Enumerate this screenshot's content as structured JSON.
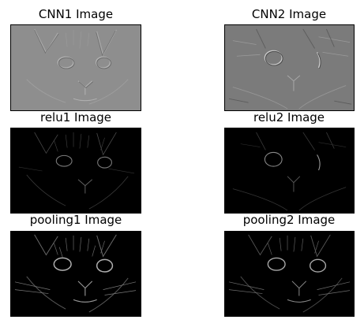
{
  "figure": {
    "panels": [
      {
        "id": "cnn1",
        "title": "CNN1 Image",
        "style": "emboss",
        "tone": "#8e8e8e"
      },
      {
        "id": "cnn2",
        "title": "CNN2 Image",
        "style": "emboss",
        "tone": "#7a7a7a"
      },
      {
        "id": "relu1",
        "title": "relu1 Image",
        "style": "dark-edges",
        "tone": "#000000"
      },
      {
        "id": "relu2",
        "title": "relu2 Image",
        "style": "dark-edges",
        "tone": "#000000"
      },
      {
        "id": "pooling1",
        "title": "pooling1 Image",
        "style": "pooled-edges",
        "tone": "#000000"
      },
      {
        "id": "pooling2",
        "title": "pooling2 Image",
        "style": "pooled-edges",
        "tone": "#000000"
      }
    ]
  }
}
